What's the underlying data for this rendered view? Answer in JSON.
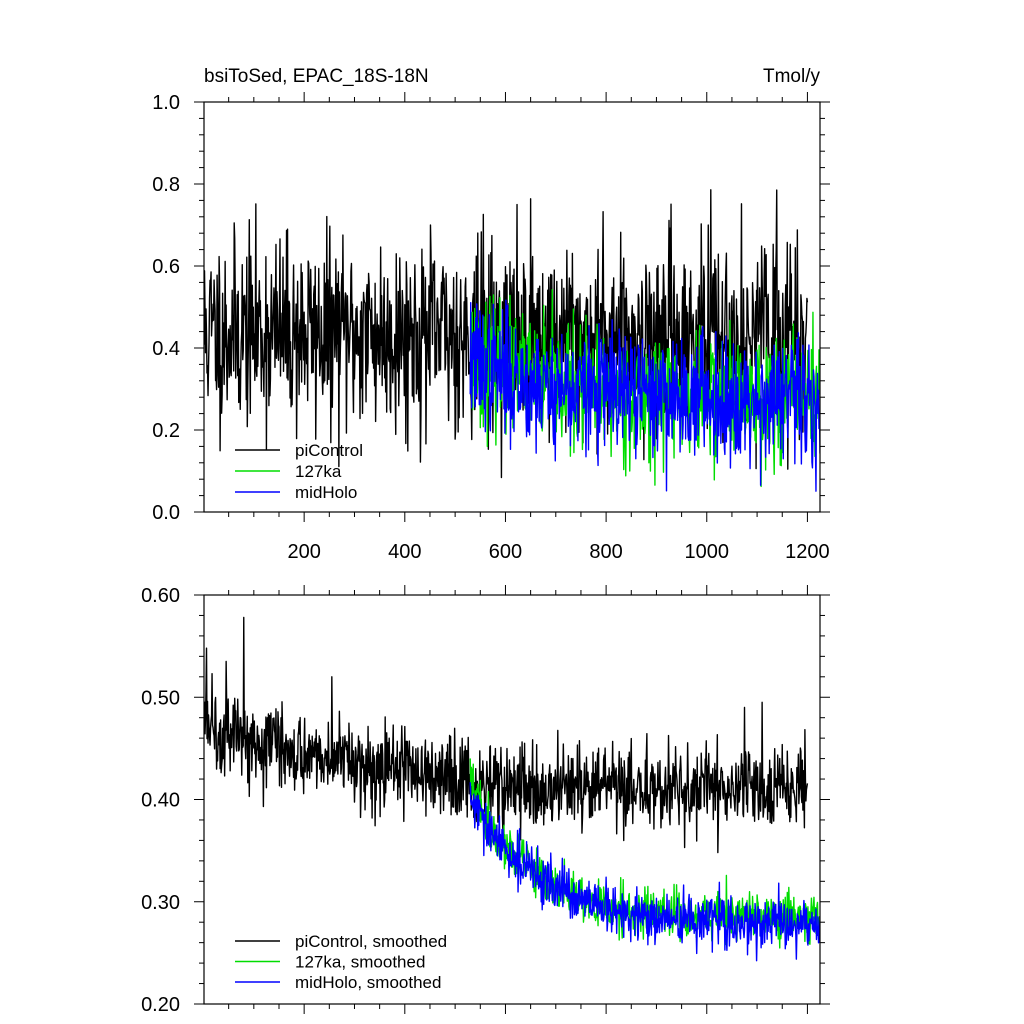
{
  "chart_data": [
    {
      "type": "line",
      "title_left": "bsiToSed, EPAC_18S-18N",
      "title_right": "Tmol/y",
      "xlim": [
        1,
        1225
      ],
      "ylim": [
        0.0,
        1.0
      ],
      "x_ticks": [
        200,
        400,
        600,
        800,
        1000,
        1200
      ],
      "y_ticks": [
        "0.0",
        "0.2",
        "0.4",
        "0.6",
        "0.8",
        "1.0"
      ],
      "grid": false,
      "legend_position": "bottom-left",
      "series": [
        {
          "name": "piControl",
          "color": "#000000",
          "x_start": 1,
          "x_end": 1200,
          "mean_profile": [
            [
              1,
              0.44
            ],
            [
              525,
              0.43
            ],
            [
              1200,
              0.43
            ]
          ],
          "noise_sd": 0.115,
          "seed": 11
        },
        {
          "name": "127ka",
          "color": "#00dd00",
          "x_start": 530,
          "x_end": 1225,
          "mean_profile": [
            [
              530,
              0.38
            ],
            [
              650,
              0.32
            ],
            [
              800,
              0.29
            ],
            [
              1225,
              0.28
            ]
          ],
          "noise_sd": 0.075,
          "seed": 23
        },
        {
          "name": "midHolo",
          "color": "#0000ff",
          "x_start": 530,
          "x_end": 1225,
          "mean_profile": [
            [
              530,
              0.37
            ],
            [
              650,
              0.31
            ],
            [
              800,
              0.29
            ],
            [
              1225,
              0.27
            ]
          ],
          "noise_sd": 0.075,
          "seed": 37
        }
      ]
    },
    {
      "type": "line",
      "xlim": [
        1,
        1225
      ],
      "ylim": [
        0.2,
        0.6
      ],
      "x_ticks": [
        200,
        400,
        600,
        800,
        1000,
        1200
      ],
      "y_ticks": [
        "0.20",
        "0.30",
        "0.40",
        "0.50",
        "0.60"
      ],
      "grid": false,
      "legend_position": "bottom-left",
      "series": [
        {
          "name": "piControl, smoothed",
          "color": "#000000",
          "x_start": 1,
          "x_end": 1200,
          "mean_profile": [
            [
              1,
              0.475
            ],
            [
              100,
              0.46
            ],
            [
              300,
              0.435
            ],
            [
              525,
              0.42
            ],
            [
              650,
              0.41
            ],
            [
              1200,
              0.41
            ]
          ],
          "noise_sd": 0.02,
          "seed": 5,
          "peaks": [
            [
              6,
              0.548
            ],
            [
              17,
              0.523
            ],
            [
              45,
              0.535
            ],
            [
              80,
              0.578
            ],
            [
              255,
              0.52
            ],
            [
              1075,
              0.49
            ],
            [
              1110,
              0.495
            ],
            [
              1187,
              0.447
            ]
          ]
        },
        {
          "name": "127ka, smoothed",
          "color": "#00dd00",
          "x_start": 530,
          "x_end": 1225,
          "mean_profile": [
            [
              530,
              0.42
            ],
            [
              570,
              0.37
            ],
            [
              650,
              0.33
            ],
            [
              750,
              0.3
            ],
            [
              850,
              0.29
            ],
            [
              1225,
              0.285
            ]
          ],
          "noise_sd": 0.012,
          "seed": 19
        },
        {
          "name": "midHolo, smoothed",
          "color": "#0000ff",
          "x_start": 530,
          "x_end": 1225,
          "mean_profile": [
            [
              530,
              0.4
            ],
            [
              570,
              0.365
            ],
            [
              650,
              0.33
            ],
            [
              750,
              0.3
            ],
            [
              850,
              0.285
            ],
            [
              1225,
              0.275
            ]
          ],
          "noise_sd": 0.012,
          "seed": 29
        }
      ]
    }
  ]
}
